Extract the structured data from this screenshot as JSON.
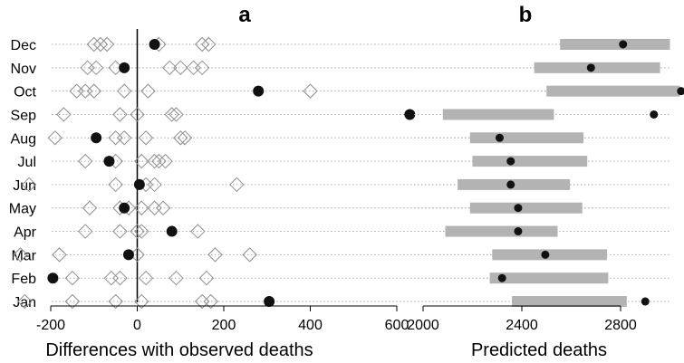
{
  "chart_data": [
    {
      "panel": "a",
      "type": "scatter",
      "title": "a",
      "xlabel": "Differences with observed deaths",
      "xlim": [
        -300,
        650
      ],
      "xticks": [
        -200,
        0,
        200,
        400,
        600
      ],
      "categories": [
        "Jan",
        "Feb",
        "Mar",
        "Apr",
        "May",
        "Jun",
        "Jul",
        "Aug",
        "Sep",
        "Oct",
        "Nov",
        "Dec"
      ],
      "reference_line_x": 0,
      "series": [
        {
          "marker": "open-diamond",
          "points": {
            "Dec": [
              -100,
              -85,
              -70,
              50,
              150,
              165
            ],
            "Nov": [
              -115,
              -95,
              -50,
              75,
              100,
              130,
              150
            ],
            "Oct": [
              -140,
              -120,
              -100,
              -30,
              25,
              400
            ],
            "Sep": [
              -170,
              -40,
              0,
              80,
              90
            ],
            "Aug": [
              -190,
              -50,
              -30,
              20,
              100,
              110
            ],
            "Jul": [
              -120,
              -50,
              10,
              40,
              50,
              65
            ],
            "Jun": [
              -250,
              -50,
              20,
              40,
              230
            ],
            "May": [
              -110,
              -40,
              -20,
              10,
              40,
              60
            ],
            "Apr": [
              -120,
              -40,
              0,
              10,
              140
            ],
            "Mar": [
              -270,
              -180,
              0,
              180,
              260
            ],
            "Feb": [
              -150,
              -60,
              -40,
              20,
              90,
              160
            ],
            "Jan": [
              -260,
              -150,
              -50,
              10,
              150,
              170
            ]
          }
        },
        {
          "marker": "filled-circle",
          "points": {
            "Dec": 40,
            "Nov": -30,
            "Oct": 280,
            "Sep": 630,
            "Aug": -95,
            "Jul": -65,
            "Jun": 5,
            "May": -30,
            "Apr": 80,
            "Mar": -20,
            "Feb": -195,
            "Jan": 305
          }
        }
      ]
    },
    {
      "panel": "b",
      "type": "range-bar",
      "title": "b",
      "xlabel": "Predicted deaths",
      "xlim": [
        1990,
        3060
      ],
      "xticks": [
        2000,
        2400,
        2800
      ],
      "categories": [
        "Jan",
        "Feb",
        "Mar",
        "Apr",
        "May",
        "Jun",
        "Jul",
        "Aug",
        "Sep",
        "Oct",
        "Nov",
        "Dec"
      ],
      "bars": {
        "Dec": [
          2555,
          3000
        ],
        "Nov": [
          2450,
          2960
        ],
        "Oct": [
          2500,
          3040
        ],
        "Sep": [
          2080,
          2530
        ],
        "Aug": [
          2190,
          2650
        ],
        "Jul": [
          2200,
          2665
        ],
        "Jun": [
          2140,
          2595
        ],
        "May": [
          2190,
          2645
        ],
        "Apr": [
          2090,
          2545
        ],
        "Mar": [
          2280,
          2745
        ],
        "Feb": [
          2270,
          2750
        ],
        "Jan": [
          2360,
          2825
        ]
      },
      "observed": {
        "Dec": 2810,
        "Nov": 2680,
        "Oct": 3045,
        "Sep": 2935,
        "Aug": 2310,
        "Jul": 2355,
        "Jun": 2355,
        "May": 2385,
        "Apr": 2385,
        "Mar": 2495,
        "Feb": 2320,
        "Jan": 2900
      }
    }
  ]
}
